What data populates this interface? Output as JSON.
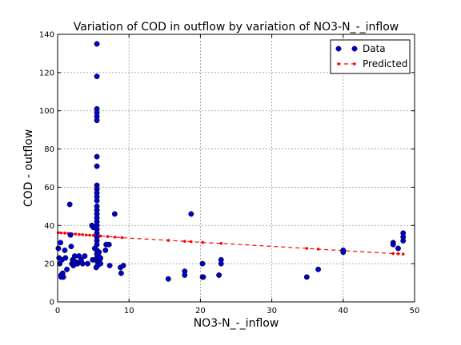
{
  "chart_data": {
    "type": "scatter",
    "title": "Variation of COD in outflow by variation of NO3-N_-_inflow",
    "xlabel": "NO3-N_-_inflow",
    "ylabel": "COD - outflow",
    "xlim": [
      0,
      50
    ],
    "ylim": [
      0,
      140
    ],
    "x_ticks": [
      0,
      10,
      20,
      30,
      40,
      50
    ],
    "y_ticks": [
      0,
      20,
      40,
      60,
      80,
      100,
      120,
      140
    ],
    "grid": true,
    "legend_position": "top-right",
    "colors": {
      "data": "#0000cc",
      "predicted": "#ff0000"
    },
    "series": [
      {
        "name": "Data",
        "style": "markers",
        "points": [
          [
            0.1,
            28
          ],
          [
            0.2,
            23
          ],
          [
            0.3,
            20
          ],
          [
            0.4,
            31
          ],
          [
            0.5,
            14
          ],
          [
            0.5,
            13
          ],
          [
            0.6,
            22
          ],
          [
            0.7,
            15
          ],
          [
            0.8,
            13
          ],
          [
            1.0,
            27
          ],
          [
            1.1,
            23
          ],
          [
            1.3,
            17
          ],
          [
            1.7,
            51
          ],
          [
            1.8,
            35
          ],
          [
            1.9,
            29
          ],
          [
            2.0,
            20
          ],
          [
            2.1,
            22
          ],
          [
            2.2,
            19
          ],
          [
            2.3,
            21
          ],
          [
            2.4,
            24
          ],
          [
            2.5,
            21
          ],
          [
            2.6,
            20
          ],
          [
            2.8,
            20
          ],
          [
            3.0,
            24
          ],
          [
            3.2,
            21
          ],
          [
            3.3,
            22
          ],
          [
            3.5,
            20
          ],
          [
            3.8,
            24
          ],
          [
            4.2,
            20
          ],
          [
            4.8,
            40
          ],
          [
            4.9,
            22
          ],
          [
            5.0,
            39
          ],
          [
            5.2,
            28
          ],
          [
            5.3,
            22
          ],
          [
            5.4,
            18
          ],
          [
            5.5,
            135
          ],
          [
            5.5,
            118
          ],
          [
            5.5,
            101
          ],
          [
            5.5,
            99
          ],
          [
            5.5,
            97
          ],
          [
            5.5,
            95
          ],
          [
            5.5,
            76
          ],
          [
            5.5,
            71
          ],
          [
            5.5,
            61
          ],
          [
            5.5,
            59
          ],
          [
            5.5,
            57
          ],
          [
            5.5,
            55
          ],
          [
            5.5,
            53
          ],
          [
            5.5,
            50
          ],
          [
            5.5,
            48
          ],
          [
            5.5,
            46
          ],
          [
            5.5,
            44
          ],
          [
            5.5,
            42
          ],
          [
            5.5,
            40
          ],
          [
            5.5,
            38
          ],
          [
            5.5,
            36
          ],
          [
            5.5,
            34
          ],
          [
            5.5,
            32
          ],
          [
            5.5,
            30
          ],
          [
            5.5,
            27
          ],
          [
            5.5,
            25
          ],
          [
            5.5,
            23
          ],
          [
            5.6,
            21
          ],
          [
            5.6,
            19
          ],
          [
            5.7,
            24
          ],
          [
            5.8,
            26
          ],
          [
            5.9,
            22
          ],
          [
            6.0,
            23
          ],
          [
            6.0,
            20
          ],
          [
            6.7,
            27
          ],
          [
            6.8,
            30
          ],
          [
            7.2,
            30
          ],
          [
            7.3,
            19
          ],
          [
            8.0,
            46
          ],
          [
            8.8,
            18
          ],
          [
            8.9,
            15
          ],
          [
            9.2,
            19
          ],
          [
            15.5,
            12
          ],
          [
            17.8,
            16
          ],
          [
            17.8,
            14
          ],
          [
            18.7,
            46
          ],
          [
            20.3,
            20
          ],
          [
            20.3,
            13
          ],
          [
            20.4,
            13
          ],
          [
            22.6,
            14
          ],
          [
            22.9,
            22
          ],
          [
            22.9,
            20
          ],
          [
            34.9,
            13
          ],
          [
            36.5,
            17
          ],
          [
            40.0,
            26
          ],
          [
            40.0,
            27
          ],
          [
            47.0,
            31
          ],
          [
            47.0,
            30
          ],
          [
            47.7,
            28
          ],
          [
            48.4,
            36
          ],
          [
            48.4,
            34
          ],
          [
            48.4,
            32
          ]
        ]
      },
      {
        "name": "Predicted",
        "style": "dashed-line",
        "points": [
          [
            0.1,
            36.2
          ],
          [
            0.5,
            36.1
          ],
          [
            1.0,
            36.0
          ],
          [
            1.5,
            35.8
          ],
          [
            2.0,
            35.6
          ],
          [
            2.5,
            35.5
          ],
          [
            3.0,
            35.3
          ],
          [
            3.5,
            35.2
          ],
          [
            4.0,
            35.0
          ],
          [
            4.5,
            34.9
          ],
          [
            5.0,
            34.8
          ],
          [
            5.5,
            34.6
          ],
          [
            6.0,
            34.5
          ],
          [
            7.0,
            34.2
          ],
          [
            8.0,
            33.9
          ],
          [
            9.0,
            33.6
          ],
          [
            15.5,
            32.2
          ],
          [
            17.8,
            31.7
          ],
          [
            18.7,
            31.5
          ],
          [
            20.3,
            31.1
          ],
          [
            22.9,
            30.6
          ],
          [
            34.9,
            28.0
          ],
          [
            36.5,
            27.6
          ],
          [
            40.0,
            26.8
          ],
          [
            47.0,
            25.3
          ],
          [
            47.7,
            25.2
          ],
          [
            48.4,
            25.0
          ]
        ]
      }
    ]
  }
}
